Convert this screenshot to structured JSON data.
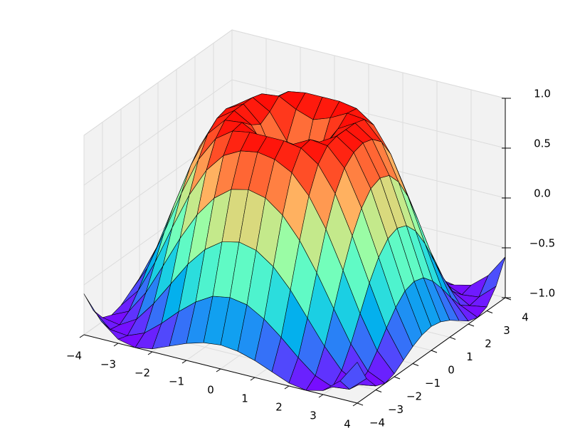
{
  "chart_data": {
    "type": "surface",
    "colormap": "rainbow",
    "edgecolor": "#000000",
    "pane_color": "#f2f2f2",
    "grid": true,
    "x": [
      -4,
      -3.5,
      -3,
      -2.5,
      -2,
      -1.5,
      -1,
      -0.5,
      0,
      0.5,
      1,
      1.5,
      2,
      2.5,
      3,
      3.5,
      4
    ],
    "y": [
      -4,
      -3.5,
      -3,
      -2.5,
      -2,
      -1.5,
      -1,
      -0.5,
      0,
      0.5,
      1,
      1.5,
      2,
      2.5,
      3,
      3.5,
      4
    ],
    "z": [
      [
        -0.59,
        -0.82,
        -0.96,
        -1.0,
        -0.97,
        -0.9,
        -0.83,
        -0.78,
        -0.76,
        -0.78,
        -0.83,
        -0.9,
        -0.97,
        -1.0,
        -0.96,
        -0.82,
        -0.59
      ],
      [
        -0.82,
        -0.97,
        -0.99,
        -0.92,
        -0.78,
        -0.62,
        -0.48,
        -0.38,
        -0.35,
        -0.38,
        -0.48,
        -0.62,
        -0.78,
        -0.92,
        -0.99,
        -0.97,
        -0.82
      ],
      [
        -0.96,
        -0.99,
        -0.89,
        -0.69,
        -0.45,
        -0.21,
        -0.02,
        0.1,
        0.14,
        0.1,
        -0.02,
        -0.21,
        -0.45,
        -0.69,
        -0.89,
        -0.99,
        -0.96
      ],
      [
        -1.0,
        -0.92,
        -0.69,
        -0.38,
        -0.06,
        0.22,
        0.43,
        0.56,
        0.6,
        0.56,
        0.43,
        0.22,
        -0.06,
        -0.38,
        -0.69,
        -0.92,
        -1.0
      ],
      [
        -0.97,
        -0.78,
        -0.45,
        -0.06,
        0.31,
        0.6,
        0.79,
        0.88,
        0.91,
        0.88,
        0.79,
        0.6,
        0.31,
        -0.06,
        -0.45,
        -0.78,
        -0.97
      ],
      [
        -0.9,
        -0.62,
        -0.21,
        0.22,
        0.6,
        0.85,
        0.97,
        1.0,
        1.0,
        1.0,
        0.97,
        0.85,
        0.6,
        0.22,
        -0.21,
        -0.62,
        -0.9
      ],
      [
        -0.83,
        -0.48,
        -0.02,
        0.43,
        0.79,
        0.97,
        0.99,
        0.9,
        0.84,
        0.9,
        0.99,
        0.97,
        0.79,
        0.43,
        -0.02,
        -0.48,
        -0.83
      ],
      [
        -0.78,
        -0.38,
        0.1,
        0.56,
        0.88,
        1.0,
        0.9,
        0.65,
        0.48,
        0.65,
        0.9,
        1.0,
        0.88,
        0.56,
        0.1,
        -0.38,
        -0.78
      ],
      [
        -0.76,
        -0.35,
        0.14,
        0.6,
        0.91,
        1.0,
        0.84,
        0.48,
        0,
        0.48,
        0.84,
        1.0,
        0.91,
        0.6,
        0.14,
        -0.35,
        -0.76
      ],
      [
        -0.78,
        -0.38,
        0.1,
        0.56,
        0.88,
        1.0,
        0.9,
        0.65,
        0.48,
        0.65,
        0.9,
        1.0,
        0.88,
        0.56,
        0.1,
        -0.38,
        -0.78
      ],
      [
        -0.83,
        -0.48,
        -0.02,
        0.43,
        0.79,
        0.97,
        0.99,
        0.9,
        0.84,
        0.9,
        0.99,
        0.97,
        0.79,
        0.43,
        -0.02,
        -0.48,
        -0.83
      ],
      [
        -0.9,
        -0.62,
        -0.21,
        0.22,
        0.6,
        0.85,
        0.97,
        1.0,
        1.0,
        1.0,
        0.97,
        0.85,
        0.6,
        0.22,
        -0.21,
        -0.62,
        -0.9
      ],
      [
        -0.97,
        -0.78,
        -0.45,
        -0.06,
        0.31,
        0.6,
        0.79,
        0.88,
        0.91,
        0.88,
        0.79,
        0.6,
        0.31,
        -0.06,
        -0.45,
        -0.78,
        -0.97
      ],
      [
        -1.0,
        -0.92,
        -0.69,
        -0.38,
        -0.06,
        0.22,
        0.43,
        0.56,
        0.6,
        0.56,
        0.43,
        0.22,
        -0.06,
        -0.38,
        -0.69,
        -0.92,
        -1.0
      ],
      [
        -0.96,
        -0.99,
        -0.89,
        -0.69,
        -0.45,
        -0.21,
        -0.02,
        0.1,
        0.14,
        0.1,
        -0.02,
        -0.21,
        -0.45,
        -0.69,
        -0.89,
        -0.99,
        -0.96
      ],
      [
        -0.82,
        -0.97,
        -0.99,
        -0.92,
        -0.78,
        -0.62,
        -0.48,
        -0.38,
        -0.35,
        -0.38,
        -0.48,
        -0.62,
        -0.78,
        -0.92,
        -0.99,
        -0.97,
        -0.82
      ],
      [
        -0.59,
        -0.82,
        -0.96,
        -1.0,
        -0.97,
        -0.9,
        -0.83,
        -0.78,
        -0.76,
        -0.78,
        -0.83,
        -0.9,
        -0.97,
        -1.0,
        -0.96,
        -0.82,
        -0.59
      ]
    ],
    "xlim": [
      -4,
      4
    ],
    "ylim": [
      -4,
      4
    ],
    "zlim": [
      -1,
      1
    ],
    "xticks": [
      {
        "value": -4,
        "label": "−4"
      },
      {
        "value": -3,
        "label": "−3"
      },
      {
        "value": -2,
        "label": "−2"
      },
      {
        "value": -1,
        "label": "−1"
      },
      0,
      1,
      2,
      3,
      4
    ],
    "yticks": [
      {
        "value": -4,
        "label": "−4"
      },
      {
        "value": -3,
        "label": "−3"
      },
      {
        "value": -2,
        "label": "−2"
      },
      {
        "value": -1,
        "label": "−1"
      },
      0,
      1,
      2,
      3,
      4
    ],
    "zticks": [
      {
        "value": -1,
        "label": "−1.0"
      },
      {
        "value": -0.5,
        "label": "−0.5"
      },
      {
        "value": 0,
        "label": "0.0"
      },
      {
        "value": 0.5,
        "label": "0.5"
      },
      {
        "value": 1,
        "label": "1.0"
      }
    ]
  }
}
